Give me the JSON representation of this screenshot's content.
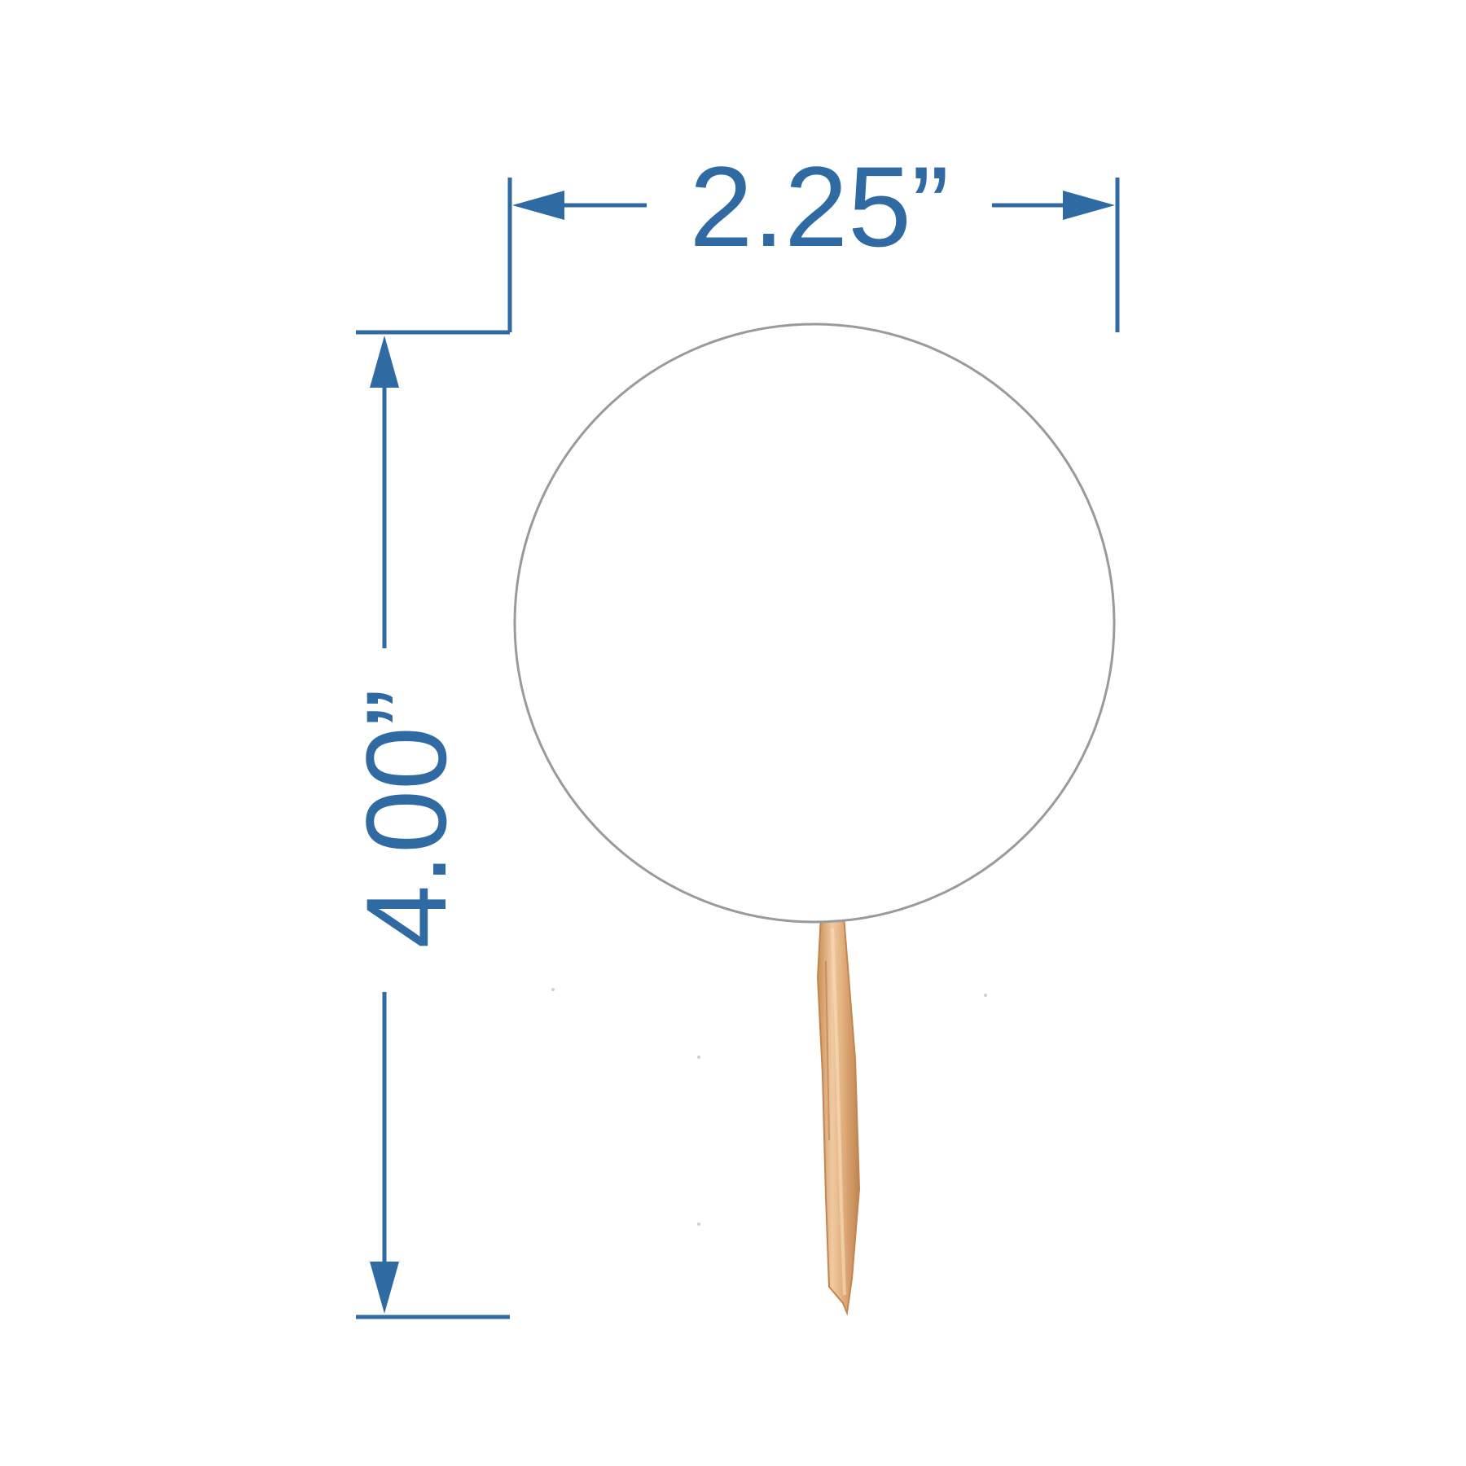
{
  "dimensions": {
    "width_label": "2.25”",
    "height_label": "4.00”"
  },
  "colors": {
    "dimension_line": "#2f6aa3",
    "circle_outline": "#9a9a9a",
    "circle_fill": "#ffffff",
    "stick_light": "#e6b98a",
    "stick_dark": "#c98d57",
    "background": "#ffffff"
  },
  "icons": {
    "arrow_head": "filled-triangle-arrow",
    "product": "round-cupcake-topper-with-toothpick"
  }
}
